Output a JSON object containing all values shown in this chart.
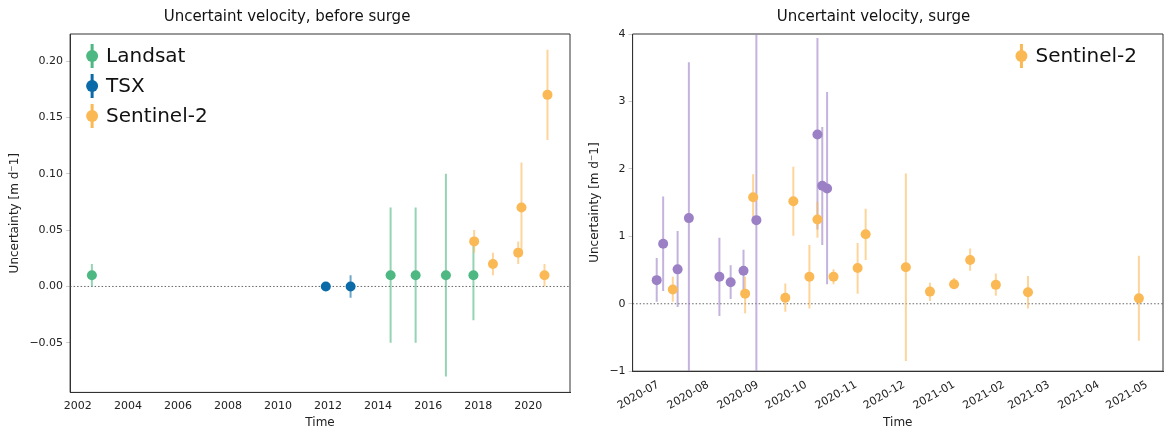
{
  "chart_data": [
    {
      "type": "scatter",
      "title": "Uncertaint velocity, before surge",
      "xlabel": "Time",
      "ylabel": "Uncertainty [m d⁻1]",
      "marker": "circle",
      "legend": "top left",
      "xlim": [
        2001.69,
        2021.67
      ],
      "xticks": [
        2002,
        2004,
        2006,
        2008,
        2010,
        2012,
        2014,
        2016,
        2018,
        2020
      ],
      "ylim": [
        -0.094,
        0.224
      ],
      "yticks": [
        {
          "value": -0.05,
          "label": "−0.05"
        },
        {
          "value": 0,
          "label": "0.00"
        },
        {
          "value": 0.05,
          "label": "0.05"
        },
        {
          "value": 0.1,
          "label": "0.10"
        },
        {
          "value": 0.15,
          "label": "0.15"
        },
        {
          "value": 0.2,
          "label": "0.20"
        }
      ],
      "ref_lines": [
        {
          "axis": "y",
          "value": 0,
          "color": "#666666",
          "line_style": "dotted"
        }
      ],
      "series": [
        {
          "name": "Landsat",
          "color": "#4db882",
          "x": [
            2002.56,
            2014.5,
            2015.5,
            2016.71,
            2017.81
          ],
          "values": [
            0.01,
            0.01,
            0.01,
            0.01,
            0.01
          ],
          "errors": [
            [
              0,
              0.02
            ],
            [
              -0.05,
              0.07
            ],
            [
              -0.05,
              0.07
            ],
            [
              -0.08,
              0.1
            ],
            [
              -0.03,
              0.04
            ]
          ]
        },
        {
          "name": "TSX",
          "color": "#0b6aa8",
          "x": [
            2011.91,
            2012.9
          ],
          "values": [
            0,
            0
          ],
          "errors": [
            null,
            [
              -0.01,
              0.01
            ]
          ]
        },
        {
          "name": "Sentinel-2",
          "color": "#fbb956",
          "x": [
            2017.84,
            2018.59,
            2019.6,
            2019.73,
            2020.65,
            2020.77
          ],
          "values": [
            0.04,
            0.02,
            0.03,
            0.07,
            0.01,
            0.17
          ],
          "errors": [
            [
              0.03,
              0.05
            ],
            [
              0.01,
              0.03
            ],
            [
              0.02,
              0.04
            ],
            [
              0.03,
              0.11
            ],
            [
              0,
              0.02
            ],
            [
              0.13,
              0.21
            ]
          ]
        }
      ]
    },
    {
      "type": "scatter",
      "title": "Uncertaint velocity, surge",
      "xlabel": "Time",
      "ylabel": "Uncertainty [m d⁻1]",
      "marker": "circle",
      "legend": "top right",
      "xlim": [
        "2020-06-15",
        "2021-05-11"
      ],
      "xticks": [
        {
          "value": "2020-07-01",
          "label": "2020-07"
        },
        {
          "value": "2020-08-01",
          "label": "2020-08"
        },
        {
          "value": "2020-09-01",
          "label": "2020-09"
        },
        {
          "value": "2020-10-01",
          "label": "2020-10"
        },
        {
          "value": "2020-11-01",
          "label": "2020-11"
        },
        {
          "value": "2020-12-01",
          "label": "2020-12"
        },
        {
          "value": "2021-01-01",
          "label": "2021-01"
        },
        {
          "value": "2021-02-01",
          "label": "2021-02"
        },
        {
          "value": "2021-03-01",
          "label": "2021-03"
        },
        {
          "value": "2021-04-01",
          "label": "2021-04"
        },
        {
          "value": "2021-05-01",
          "label": "2021-05"
        }
      ],
      "ylim": [
        -1,
        4
      ],
      "yticks": [
        {
          "value": -1,
          "label": "−1"
        },
        0,
        1,
        2,
        3,
        4
      ],
      "ref_lines": [
        {
          "axis": "y",
          "value": 0,
          "color": "#666666",
          "line_style": "dotted"
        }
      ],
      "series": [
        {
          "color": "#9b80c6",
          "x": [
            "2020-06-30",
            "2020-07-04",
            "2020-07-13",
            "2020-07-20",
            "2020-08-08",
            "2020-08-15",
            "2020-08-23",
            "2020-08-31",
            "2020-10-08",
            "2020-10-11",
            "2020-10-14"
          ],
          "values": [
            0.35,
            0.89,
            0.51,
            1.27,
            0.4,
            0.32,
            0.49,
            1.24,
            2.51,
            1.75,
            1.71
          ],
          "errors": [
            [
              0.03,
              0.68
            ],
            [
              0.19,
              1.59
            ],
            [
              -0.05,
              1.08
            ],
            [
              -1,
              3.58
            ],
            [
              -0.18,
              0.98
            ],
            [
              0.07,
              0.57
            ],
            [
              0.18,
              0.8
            ],
            [
              -1,
              4
            ],
            [
              1.1,
              3.94
            ],
            [
              0.87,
              2.62
            ],
            [
              0.29,
              3.14
            ]
          ]
        },
        {
          "name": "Sentinel-2",
          "color": "#fbb956",
          "x": [
            "2020-07-10",
            "2020-08-24",
            "2020-08-29",
            "2020-09-18",
            "2020-09-23",
            "2020-10-03",
            "2020-10-08",
            "2020-10-18",
            "2020-11-02",
            "2020-11-07",
            "2020-12-02",
            "2020-12-17",
            "2021-01-01",
            "2021-01-11",
            "2021-01-27",
            "2021-02-16",
            "2021-04-26"
          ],
          "values": [
            0.21,
            0.15,
            1.58,
            0.09,
            1.52,
            0.4,
            1.25,
            0.4,
            0.53,
            1.03,
            0.54,
            0.18,
            0.29,
            0.65,
            0.28,
            0.17,
            0.08
          ],
          "errors": [
            [
              0.03,
              0.4
            ],
            [
              -0.14,
              0.4
            ],
            [
              1.29,
              1.92
            ],
            [
              -0.12,
              0.3
            ],
            [
              1.01,
              2.03
            ],
            [
              -0.07,
              0.87
            ],
            [
              0.98,
              1.51
            ],
            [
              0.29,
              0.51
            ],
            [
              0.15,
              0.9
            ],
            [
              0.65,
              1.41
            ],
            [
              -0.85,
              1.93
            ],
            [
              0.04,
              0.31
            ],
            [
              0.22,
              0.38
            ],
            [
              0.49,
              0.82
            ],
            [
              0.12,
              0.45
            ],
            [
              -0.07,
              0.41
            ],
            [
              -0.55,
              0.71
            ]
          ]
        }
      ]
    }
  ]
}
